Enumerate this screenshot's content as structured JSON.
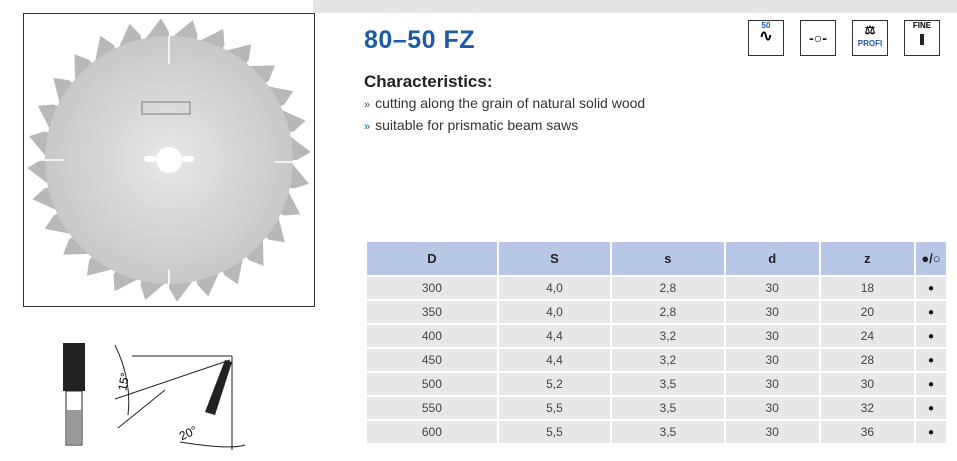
{
  "product": {
    "title": "80–50 FZ",
    "characteristics_heading": "Characteristics:",
    "bullet_marker": "»",
    "characteristics": [
      "cutting along the grain of natural solid wood",
      "suitable for prismatic beam saws"
    ]
  },
  "icons": [
    {
      "name": "hook-tooth-icon",
      "label": "50"
    },
    {
      "name": "bore-pinhole-icon",
      "label": ""
    },
    {
      "name": "profi-scale-icon",
      "label": "PROFI"
    },
    {
      "name": "fine-cut-icon",
      "label": "FINE"
    }
  ],
  "diagram": {
    "angle_1": "15°",
    "angle_2": "20°"
  },
  "table": {
    "headers": [
      "D",
      "S",
      "s",
      "d",
      "z",
      "●/○"
    ],
    "rows": [
      [
        "300",
        "4,0",
        "2,8",
        "30",
        "18",
        "●"
      ],
      [
        "350",
        "4,0",
        "2,8",
        "30",
        "20",
        "●"
      ],
      [
        "400",
        "4,4",
        "3,2",
        "30",
        "24",
        "●"
      ],
      [
        "450",
        "4,4",
        "3,2",
        "30",
        "28",
        "●"
      ],
      [
        "500",
        "5,2",
        "3,5",
        "30",
        "30",
        "●"
      ],
      [
        "550",
        "5,5",
        "3,5",
        "30",
        "32",
        "●"
      ],
      [
        "600",
        "5,5",
        "3,5",
        "30",
        "36",
        "●"
      ]
    ]
  },
  "colors": {
    "title": "#1e5aa8",
    "header_bg": "#b9c7e6",
    "row_bg": "#e7e7e7"
  }
}
